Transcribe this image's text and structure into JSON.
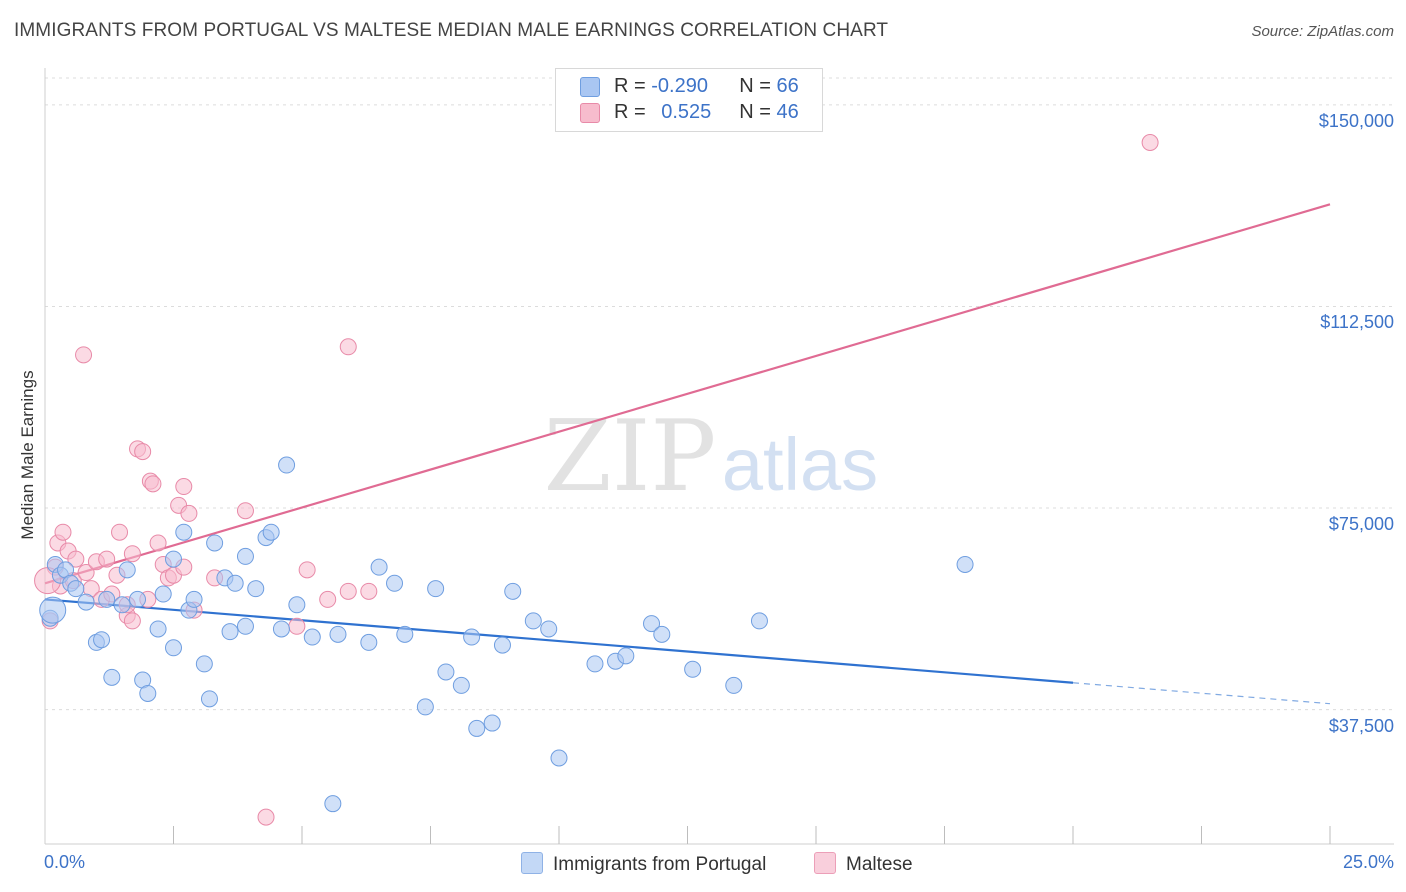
{
  "title": "IMMIGRANTS FROM PORTUGAL VS MALTESE MEDIAN MALE EARNINGS CORRELATION CHART",
  "source": "Source: ZipAtlas.com",
  "watermark": {
    "zip": "ZIP",
    "atlas": "atlas"
  },
  "legend_stats": [
    {
      "r_label": "R =",
      "r_value": "-0.290",
      "n_label": "N =",
      "n_value": "66",
      "color": "#a9c6f2",
      "border": "#6f9ee0"
    },
    {
      "r_label": "R =",
      "r_value": "0.525",
      "n_label": "N =",
      "n_value": "46",
      "color": "#f7bccd",
      "border": "#e88aa8"
    }
  ],
  "chart_data": {
    "type": "scatter",
    "title": "IMMIGRANTS FROM PORTUGAL VS MALTESE MEDIAN MALE EARNINGS CORRELATION CHART",
    "xlabel": "",
    "ylabel": "Median Male Earnings",
    "xlim": [
      0,
      25
    ],
    "ylim": [
      12500,
      155000
    ],
    "x_tick_labels": [
      "0.0%",
      "25.0%"
    ],
    "y_ticks": [
      37500,
      75000,
      112500,
      150000
    ],
    "y_tick_labels": [
      "$37,500",
      "$75,000",
      "$112,500",
      "$150,000"
    ],
    "grid": true,
    "legend_position": "bottom",
    "series": [
      {
        "name": "Immigrants from Portugal",
        "color": "#a9c6f2",
        "edge": "#6f9ee0",
        "line_color": "#2f72d0",
        "trend": {
          "x0": 0,
          "y0": 58000,
          "x1": 20,
          "y1": 42500,
          "dash_to_x": 25,
          "dash_to_y": 38600
        },
        "points": [
          [
            0.1,
            54500
          ],
          [
            0.2,
            64500
          ],
          [
            0.3,
            62500
          ],
          [
            0.4,
            63500
          ],
          [
            0.5,
            61000
          ],
          [
            0.6,
            60000
          ],
          [
            0.8,
            57500
          ],
          [
            1.0,
            50000
          ],
          [
            1.1,
            50500
          ],
          [
            1.2,
            58000
          ],
          [
            1.3,
            43500
          ],
          [
            1.5,
            57000
          ],
          [
            1.6,
            63500
          ],
          [
            1.8,
            58000
          ],
          [
            1.9,
            43000
          ],
          [
            2.0,
            40500
          ],
          [
            2.2,
            52500
          ],
          [
            2.3,
            59000
          ],
          [
            2.5,
            49000
          ],
          [
            2.5,
            65500
          ],
          [
            2.7,
            70500
          ],
          [
            2.8,
            56000
          ],
          [
            2.9,
            58000
          ],
          [
            3.1,
            46000
          ],
          [
            3.2,
            39500
          ],
          [
            3.3,
            68500
          ],
          [
            3.5,
            62000
          ],
          [
            3.6,
            52000
          ],
          [
            3.7,
            61000
          ],
          [
            3.9,
            53000
          ],
          [
            3.9,
            66000
          ],
          [
            4.1,
            60000
          ],
          [
            4.3,
            69500
          ],
          [
            4.4,
            70500
          ],
          [
            4.6,
            52500
          ],
          [
            4.7,
            83000
          ],
          [
            4.9,
            57000
          ],
          [
            5.2,
            51000
          ],
          [
            5.6,
            20000
          ],
          [
            5.7,
            51500
          ],
          [
            6.3,
            50000
          ],
          [
            6.5,
            64000
          ],
          [
            6.8,
            61000
          ],
          [
            7.0,
            51500
          ],
          [
            7.4,
            38000
          ],
          [
            7.6,
            60000
          ],
          [
            7.8,
            44500
          ],
          [
            8.1,
            42000
          ],
          [
            8.3,
            51000
          ],
          [
            8.4,
            34000
          ],
          [
            8.7,
            35000
          ],
          [
            8.9,
            49500
          ],
          [
            9.1,
            59500
          ],
          [
            9.5,
            54000
          ],
          [
            9.8,
            52500
          ],
          [
            10.0,
            28500
          ],
          [
            10.7,
            46000
          ],
          [
            11.1,
            46500
          ],
          [
            11.3,
            47500
          ],
          [
            11.8,
            53500
          ],
          [
            12.0,
            51500
          ],
          [
            12.6,
            45000
          ],
          [
            13.4,
            42000
          ],
          [
            13.9,
            54000
          ],
          [
            17.9,
            64500
          ],
          [
            0.15,
            56000
          ]
        ]
      },
      {
        "name": "Maltese",
        "color": "#f7bccd",
        "edge": "#e88aa8",
        "line_color": "#e06b93",
        "trend": {
          "x0": 0,
          "y0": 61000,
          "x1": 25,
          "y1": 131500
        },
        "points": [
          [
            0.1,
            54000
          ],
          [
            0.2,
            64000
          ],
          [
            0.25,
            68500
          ],
          [
            0.3,
            60500
          ],
          [
            0.35,
            70500
          ],
          [
            0.45,
            67000
          ],
          [
            0.55,
            61500
          ],
          [
            0.6,
            65500
          ],
          [
            0.75,
            103500
          ],
          [
            0.8,
            63000
          ],
          [
            0.9,
            60000
          ],
          [
            1.0,
            65000
          ],
          [
            1.1,
            58000
          ],
          [
            1.2,
            65500
          ],
          [
            1.3,
            59000
          ],
          [
            1.4,
            62500
          ],
          [
            1.45,
            70500
          ],
          [
            1.6,
            55000
          ],
          [
            1.6,
            57000
          ],
          [
            1.7,
            66500
          ],
          [
            1.7,
            54000
          ],
          [
            1.8,
            86000
          ],
          [
            1.9,
            85500
          ],
          [
            2.0,
            58000
          ],
          [
            2.05,
            80000
          ],
          [
            2.1,
            79500
          ],
          [
            2.2,
            68500
          ],
          [
            2.3,
            64500
          ],
          [
            2.4,
            62000
          ],
          [
            2.5,
            62500
          ],
          [
            2.6,
            75500
          ],
          [
            2.7,
            79000
          ],
          [
            2.7,
            64000
          ],
          [
            2.8,
            74000
          ],
          [
            2.9,
            56000
          ],
          [
            3.3,
            62000
          ],
          [
            3.9,
            74500
          ],
          [
            4.3,
            17500
          ],
          [
            4.9,
            53000
          ],
          [
            5.1,
            63500
          ],
          [
            5.5,
            58000
          ],
          [
            5.9,
            105000
          ],
          [
            5.9,
            59500
          ],
          [
            6.3,
            59500
          ],
          [
            21.5,
            143000
          ],
          [
            0.05,
            61500
          ]
        ]
      }
    ]
  }
}
